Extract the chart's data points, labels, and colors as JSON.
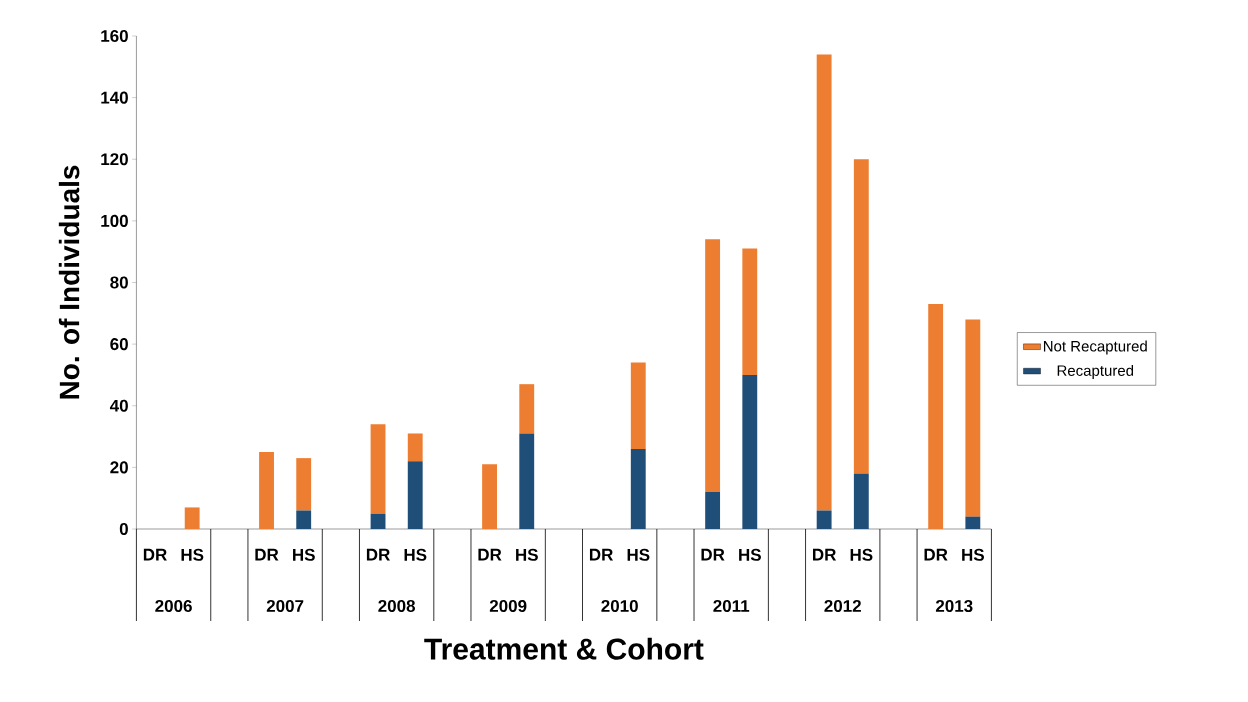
{
  "chart_data": {
    "type": "bar",
    "stacked": true,
    "xlabel": "Treatment & Cohort",
    "ylabel": "No. of Individuals",
    "categories": [
      "DR",
      "HS",
      null,
      "DR",
      "HS",
      null,
      "DR",
      "HS",
      null,
      "DR",
      "HS",
      null,
      "DR",
      "HS",
      null,
      "DR",
      "HS",
      null,
      "DR",
      "HS",
      null,
      "DR",
      "HS"
    ],
    "series": [
      {
        "name": "Recaptured",
        "color": "#1f4e79",
        "values": [
          0,
          0,
          null,
          0,
          6,
          null,
          5,
          22,
          null,
          0,
          31,
          null,
          0,
          26,
          null,
          12,
          50,
          null,
          6,
          18,
          null,
          0,
          4
        ]
      },
      {
        "name": "Not Recaptured",
        "color": "#ed7d31",
        "values": [
          0,
          7,
          null,
          25,
          17,
          null,
          29,
          9,
          null,
          21,
          16,
          null,
          0,
          28,
          null,
          82,
          41,
          null,
          148,
          102,
          null,
          73,
          64
        ]
      }
    ],
    "ylim": [
      0,
      160
    ],
    "yticks": [
      0,
      20,
      40,
      60,
      80,
      100,
      120,
      140,
      160
    ],
    "legend": "right",
    "annotations": [
      "2006",
      "2007",
      "2008",
      "2009",
      "2010",
      "2011",
      "2012",
      "2013"
    ]
  }
}
